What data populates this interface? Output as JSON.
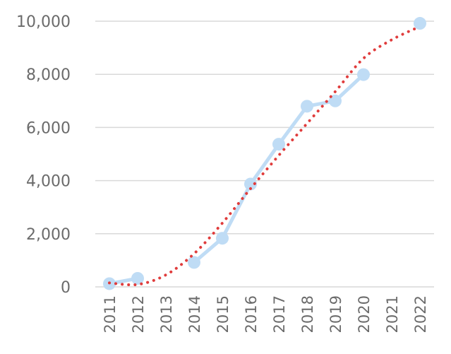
{
  "chart_data": {
    "type": "line",
    "categories": [
      "2011",
      "2012",
      "2013",
      "2014",
      "2015",
      "2016",
      "2017",
      "2018",
      "2019",
      "2020",
      "2021",
      "2022"
    ],
    "series": [
      {
        "values": [
          120,
          320,
          null,
          920,
          1830,
          3870,
          5370,
          6800,
          7000,
          7990,
          null,
          9920
        ],
        "color": "#bfdcf5",
        "style": "solid-with-markers"
      },
      {
        "values": [
          150,
          90,
          450,
          1250,
          2400,
          3700,
          4950,
          6150,
          7350,
          8600,
          9300,
          9800
        ],
        "color": "#e03c3c",
        "style": "dotted-trendline"
      }
    ],
    "ylim": [
      0,
      10000
    ],
    "yticks": [
      {
        "value": 0,
        "label": "0"
      },
      {
        "value": 2000,
        "label": "2,000"
      },
      {
        "value": 4000,
        "label": "4,000"
      },
      {
        "value": 6000,
        "label": "6,000"
      },
      {
        "value": 8000,
        "label": "8,000"
      },
      {
        "value": 10000,
        "label": "10,000"
      }
    ],
    "grid": true,
    "legend": "none",
    "gridColor": "#d9d9d9"
  }
}
